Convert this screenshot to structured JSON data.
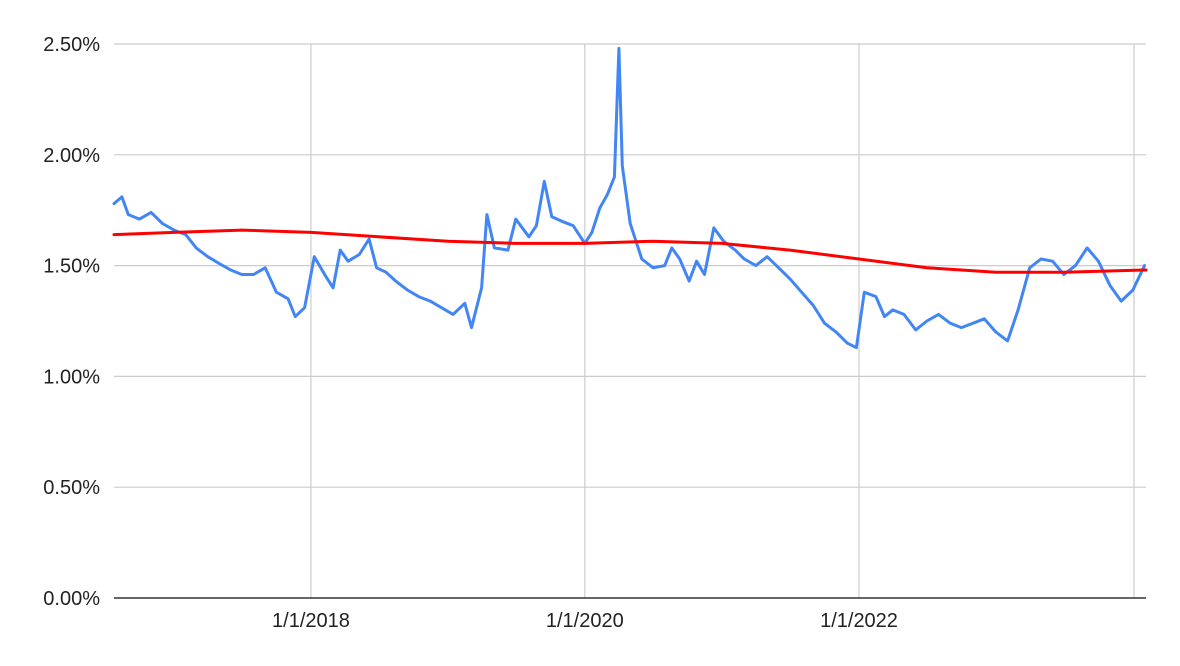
{
  "chart_data": {
    "type": "line",
    "title": "",
    "xlabel": "",
    "ylabel": "",
    "x_range": [
      "2016-07-25",
      "2024-02-05"
    ],
    "ylim": [
      0,
      0.025
    ],
    "y_ticks": [
      {
        "value": 0.0,
        "label": "0.00%"
      },
      {
        "value": 0.005,
        "label": "0.50%"
      },
      {
        "value": 0.01,
        "label": "1.00%"
      },
      {
        "value": 0.015,
        "label": "1.50%"
      },
      {
        "value": 0.02,
        "label": "2.00%"
      },
      {
        "value": 0.025,
        "label": "2.50%"
      }
    ],
    "x_ticks": [
      {
        "value": "2018-01-01",
        "label": "1/1/2018"
      },
      {
        "value": "2020-01-01",
        "label": "1/1/2020"
      },
      {
        "value": "2022-01-01",
        "label": "1/1/2022"
      }
    ],
    "grid": true,
    "legend": "none",
    "colors": {
      "series1": "#4285f4",
      "series2": "#ff0000",
      "grid": "#cccccc",
      "axis": "#333333"
    },
    "series": [
      {
        "values": [
          [
            "2016-07-25",
            0.0178
          ],
          [
            "2016-08-15",
            0.0181
          ],
          [
            "2016-09-01",
            0.0173
          ],
          [
            "2016-10-01",
            0.0171
          ],
          [
            "2016-11-01",
            0.0174
          ],
          [
            "2016-12-01",
            0.0169
          ],
          [
            "2017-01-01",
            0.0166
          ],
          [
            "2017-02-01",
            0.0164
          ],
          [
            "2017-03-01",
            0.0158
          ],
          [
            "2017-04-01",
            0.0154
          ],
          [
            "2017-05-01",
            0.0151
          ],
          [
            "2017-06-01",
            0.0148
          ],
          [
            "2017-07-01",
            0.0146
          ],
          [
            "2017-08-01",
            0.0146
          ],
          [
            "2017-09-01",
            0.0149
          ],
          [
            "2017-10-01",
            0.0138
          ],
          [
            "2017-11-01",
            0.0135
          ],
          [
            "2017-11-20",
            0.0127
          ],
          [
            "2017-12-15",
            0.0131
          ],
          [
            "2018-01-10",
            0.0154
          ],
          [
            "2018-02-10",
            0.0145
          ],
          [
            "2018-03-01",
            0.014
          ],
          [
            "2018-03-20",
            0.0157
          ],
          [
            "2018-04-10",
            0.0152
          ],
          [
            "2018-05-10",
            0.0155
          ],
          [
            "2018-06-05",
            0.0162
          ],
          [
            "2018-06-25",
            0.0149
          ],
          [
            "2018-07-20",
            0.0147
          ],
          [
            "2018-08-15",
            0.0143
          ],
          [
            "2018-09-15",
            0.0139
          ],
          [
            "2018-10-15",
            0.0136
          ],
          [
            "2018-11-15",
            0.0134
          ],
          [
            "2018-12-15",
            0.0131
          ],
          [
            "2019-01-15",
            0.0128
          ],
          [
            "2019-02-15",
            0.0133
          ],
          [
            "2019-03-05",
            0.0122
          ],
          [
            "2019-04-01",
            0.014
          ],
          [
            "2019-04-15",
            0.0173
          ],
          [
            "2019-05-05",
            0.0158
          ],
          [
            "2019-06-10",
            0.0157
          ],
          [
            "2019-07-01",
            0.0171
          ],
          [
            "2019-08-05",
            0.0163
          ],
          [
            "2019-08-25",
            0.0168
          ],
          [
            "2019-09-15",
            0.0188
          ],
          [
            "2019-10-05",
            0.0172
          ],
          [
            "2019-11-01",
            0.017
          ],
          [
            "2019-12-01",
            0.0168
          ],
          [
            "2020-01-01",
            0.016
          ],
          [
            "2020-01-20",
            0.0165
          ],
          [
            "2020-02-10",
            0.0176
          ],
          [
            "2020-03-01",
            0.0182
          ],
          [
            "2020-03-20",
            0.019
          ],
          [
            "2020-04-01",
            0.0248
          ],
          [
            "2020-04-10",
            0.0195
          ],
          [
            "2020-05-01",
            0.0169
          ],
          [
            "2020-06-01",
            0.0153
          ],
          [
            "2020-07-01",
            0.0149
          ],
          [
            "2020-08-01",
            0.015
          ],
          [
            "2020-08-20",
            0.0158
          ],
          [
            "2020-09-10",
            0.0153
          ],
          [
            "2020-10-05",
            0.0143
          ],
          [
            "2020-10-25",
            0.0152
          ],
          [
            "2020-11-15",
            0.0146
          ],
          [
            "2020-12-10",
            0.0167
          ],
          [
            "2021-01-05",
            0.0161
          ],
          [
            "2021-02-05",
            0.0157
          ],
          [
            "2021-03-01",
            0.0153
          ],
          [
            "2021-04-01",
            0.015
          ],
          [
            "2021-05-01",
            0.0154
          ],
          [
            "2021-06-01",
            0.0149
          ],
          [
            "2021-07-01",
            0.0144
          ],
          [
            "2021-08-01",
            0.0138
          ],
          [
            "2021-09-01",
            0.0132
          ],
          [
            "2021-10-01",
            0.0124
          ],
          [
            "2021-11-01",
            0.012
          ],
          [
            "2021-12-01",
            0.0115
          ],
          [
            "2021-12-25",
            0.0113
          ],
          [
            "2022-01-15",
            0.0138
          ],
          [
            "2022-02-15",
            0.0136
          ],
          [
            "2022-03-10",
            0.0127
          ],
          [
            "2022-04-01",
            0.013
          ],
          [
            "2022-05-01",
            0.0128
          ],
          [
            "2022-06-01",
            0.0121
          ],
          [
            "2022-07-01",
            0.0125
          ],
          [
            "2022-08-01",
            0.0128
          ],
          [
            "2022-09-01",
            0.0124
          ],
          [
            "2022-10-01",
            0.0122
          ],
          [
            "2022-11-01",
            0.0124
          ],
          [
            "2022-12-01",
            0.0126
          ],
          [
            "2023-01-01",
            0.012
          ],
          [
            "2023-02-01",
            0.0116
          ],
          [
            "2023-03-01",
            0.013
          ],
          [
            "2023-04-01",
            0.0149
          ],
          [
            "2023-05-01",
            0.0153
          ],
          [
            "2023-06-01",
            0.0152
          ],
          [
            "2023-07-01",
            0.0146
          ],
          [
            "2023-08-01",
            0.015
          ],
          [
            "2023-09-01",
            0.0158
          ],
          [
            "2023-10-01",
            0.0152
          ],
          [
            "2023-11-01",
            0.0141
          ],
          [
            "2023-12-01",
            0.0134
          ],
          [
            "2024-01-01",
            0.0139
          ],
          [
            "2024-02-01",
            0.015
          ]
        ]
      },
      {
        "values": [
          [
            "2016-07-25",
            0.0164
          ],
          [
            "2017-01-01",
            0.0165
          ],
          [
            "2017-07-01",
            0.0166
          ],
          [
            "2018-01-01",
            0.0165
          ],
          [
            "2018-07-01",
            0.0163
          ],
          [
            "2019-01-01",
            0.0161
          ],
          [
            "2019-07-01",
            0.016
          ],
          [
            "2020-01-01",
            0.016
          ],
          [
            "2020-07-01",
            0.0161
          ],
          [
            "2021-01-01",
            0.016
          ],
          [
            "2021-07-01",
            0.0157
          ],
          [
            "2022-01-01",
            0.0153
          ],
          [
            "2022-07-01",
            0.0149
          ],
          [
            "2023-01-01",
            0.0147
          ],
          [
            "2023-07-01",
            0.0147
          ],
          [
            "2024-02-05",
            0.0148
          ]
        ]
      }
    ]
  }
}
